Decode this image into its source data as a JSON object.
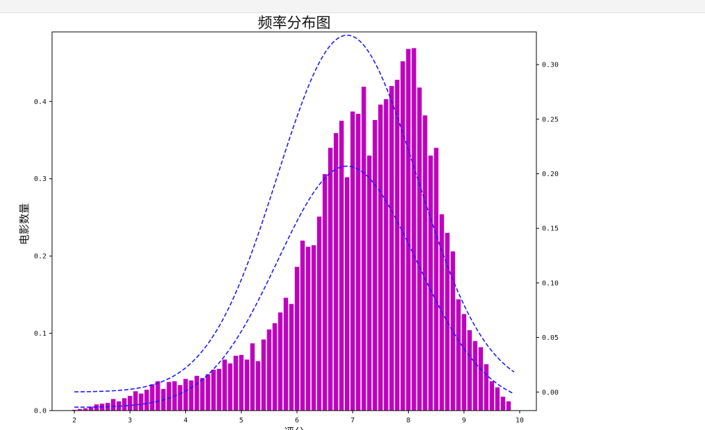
{
  "chart_data": {
    "type": "bar",
    "title": "频率分布图",
    "xlabel": "评分",
    "ylabel": "电影数量",
    "xlim": [
      1.6,
      10.3
    ],
    "ylim": [
      0,
      0.49
    ],
    "y2lim": [
      -0.017,
      0.33
    ],
    "grid": false,
    "xticks": [
      "2",
      "3",
      "4",
      "5",
      "6",
      "7",
      "8",
      "9",
      "10"
    ],
    "yticks": [
      "0.0",
      "0.1",
      "0.2",
      "0.3",
      "0.4"
    ],
    "y2ticks": [
      "0.00",
      "0.05",
      "0.10",
      "0.15",
      "0.20",
      "0.25",
      "0.30"
    ],
    "bar_color": "#bf00bf",
    "curve_color": "#1a1aff",
    "bars": {
      "x": [
        2.0,
        2.1,
        2.2,
        2.3,
        2.4,
        2.5,
        2.6,
        2.7,
        2.8,
        2.9,
        3.0,
        3.1,
        3.2,
        3.3,
        3.4,
        3.5,
        3.6,
        3.7,
        3.8,
        3.9,
        4.0,
        4.1,
        4.2,
        4.3,
        4.4,
        4.5,
        4.6,
        4.7,
        4.8,
        4.9,
        5.0,
        5.1,
        5.2,
        5.3,
        5.4,
        5.5,
        5.6,
        5.7,
        5.8,
        5.9,
        6.0,
        6.1,
        6.2,
        6.3,
        6.4,
        6.5,
        6.6,
        6.7,
        6.8,
        6.9,
        7.0,
        7.1,
        7.2,
        7.3,
        7.4,
        7.5,
        7.6,
        7.7,
        7.8,
        7.9,
        8.0,
        8.1,
        8.2,
        8.3,
        8.4,
        8.5,
        8.6,
        8.7,
        8.8,
        8.9,
        9.0,
        9.1,
        9.2,
        9.3,
        9.4,
        9.5,
        9.6,
        9.7,
        9.8
      ],
      "values": [
        0.001,
        0.002,
        0.003,
        0.005,
        0.008,
        0.009,
        0.01,
        0.015,
        0.012,
        0.016,
        0.019,
        0.025,
        0.022,
        0.027,
        0.034,
        0.038,
        0.028,
        0.037,
        0.038,
        0.033,
        0.041,
        0.039,
        0.045,
        0.042,
        0.047,
        0.053,
        0.054,
        0.066,
        0.061,
        0.071,
        0.072,
        0.066,
        0.087,
        0.064,
        0.092,
        0.105,
        0.113,
        0.127,
        0.146,
        0.138,
        0.186,
        0.22,
        0.212,
        0.214,
        0.251,
        0.306,
        0.34,
        0.359,
        0.375,
        0.302,
        0.387,
        0.384,
        0.419,
        0.33,
        0.376,
        0.396,
        0.403,
        0.42,
        0.428,
        0.452,
        0.468,
        0.469,
        0.418,
        0.382,
        0.33,
        0.34,
        0.254,
        0.23,
        0.206,
        0.144,
        0.125,
        0.104,
        0.09,
        0.082,
        0.06,
        0.038,
        0.03,
        0.018,
        0.012
      ]
    },
    "curves_right_axis": [
      {
        "mean": 6.9,
        "sd": 1.25,
        "amp": 0.327,
        "base": 0.0,
        "x_range": [
          2.0,
          9.9
        ]
      },
      {
        "mean": 6.9,
        "sd": 1.25,
        "amp": 0.221,
        "base": -0.014,
        "x_range": [
          2.0,
          9.9
        ]
      }
    ]
  }
}
